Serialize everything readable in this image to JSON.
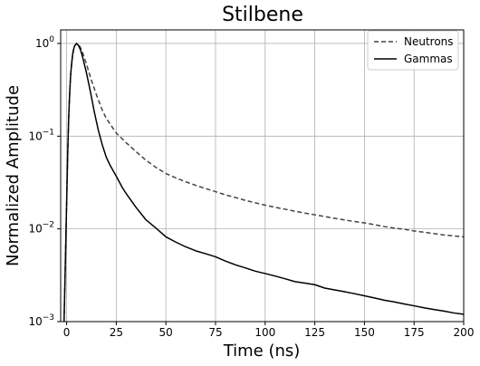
{
  "chart_data": {
    "type": "line",
    "title": "Stilbene",
    "xlabel": "Time (ns)",
    "ylabel": "Normalized Amplitude",
    "xlim": [
      -3,
      200
    ],
    "ylim": [
      0.001,
      1.4
    ],
    "yscale": "log",
    "grid": true,
    "legend_position": "top-right",
    "x_ticks": [
      0,
      25,
      50,
      75,
      100,
      125,
      150,
      175,
      200
    ],
    "y_ticks": [
      {
        "value": 0.001,
        "base": "10",
        "exp": "−3"
      },
      {
        "value": 0.01,
        "base": "10",
        "exp": "−2"
      },
      {
        "value": 0.1,
        "base": "10",
        "exp": "−1"
      },
      {
        "value": 1,
        "base": "10",
        "exp": "0"
      }
    ],
    "series": [
      {
        "name": "Neutrons",
        "color": "#444444",
        "style": "dashed",
        "points": [
          [
            -1.3,
            0.001
          ],
          [
            -0.8,
            0.003
          ],
          [
            -0.2,
            0.012
          ],
          [
            0.5,
            0.06
          ],
          [
            1,
            0.15
          ],
          [
            1.5,
            0.28
          ],
          [
            2,
            0.45
          ],
          [
            2.5,
            0.6
          ],
          [
            3,
            0.75
          ],
          [
            3.5,
            0.86
          ],
          [
            4,
            0.94
          ],
          [
            5,
            1.0
          ],
          [
            6,
            0.97
          ],
          [
            7,
            0.9
          ],
          [
            8,
            0.8
          ],
          [
            10,
            0.6
          ],
          [
            12,
            0.43
          ],
          [
            15,
            0.28
          ],
          [
            18,
            0.19
          ],
          [
            20,
            0.155
          ],
          [
            25,
            0.108
          ],
          [
            30,
            0.085
          ],
          [
            35,
            0.068
          ],
          [
            40,
            0.055
          ],
          [
            45,
            0.046
          ],
          [
            50,
            0.0395
          ],
          [
            55,
            0.0355
          ],
          [
            60,
            0.0322
          ],
          [
            65,
            0.0295
          ],
          [
            70,
            0.0272
          ],
          [
            75,
            0.0252
          ],
          [
            80,
            0.0233
          ],
          [
            85,
            0.0218
          ],
          [
            90,
            0.0203
          ],
          [
            95,
            0.0191
          ],
          [
            100,
            0.018
          ],
          [
            105,
            0.0171
          ],
          [
            110,
            0.0163
          ],
          [
            115,
            0.0155
          ],
          [
            120,
            0.0148
          ],
          [
            125,
            0.0142
          ],
          [
            130,
            0.0136
          ],
          [
            135,
            0.013
          ],
          [
            140,
            0.0125
          ],
          [
            145,
            0.012
          ],
          [
            150,
            0.0116
          ],
          [
            155,
            0.0111
          ],
          [
            160,
            0.0106
          ],
          [
            165,
            0.0102
          ],
          [
            170,
            0.0099
          ],
          [
            175,
            0.0095
          ],
          [
            180,
            0.0092
          ],
          [
            185,
            0.0089
          ],
          [
            190,
            0.0086
          ],
          [
            195,
            0.0084
          ],
          [
            200,
            0.0082
          ]
        ]
      },
      {
        "name": "Gammas",
        "color": "#000000",
        "style": "solid",
        "points": [
          [
            -1.3,
            0.001
          ],
          [
            -0.8,
            0.003
          ],
          [
            -0.2,
            0.012
          ],
          [
            0.5,
            0.06
          ],
          [
            1,
            0.15
          ],
          [
            1.5,
            0.28
          ],
          [
            2,
            0.45
          ],
          [
            2.5,
            0.6
          ],
          [
            3,
            0.75
          ],
          [
            3.5,
            0.86
          ],
          [
            4,
            0.94
          ],
          [
            5,
            1.0
          ],
          [
            6,
            0.95
          ],
          [
            7,
            0.85
          ],
          [
            8,
            0.72
          ],
          [
            10,
            0.48
          ],
          [
            12,
            0.3
          ],
          [
            14,
            0.18
          ],
          [
            16,
            0.115
          ],
          [
            18,
            0.08
          ],
          [
            20,
            0.059
          ],
          [
            22,
            0.048
          ],
          [
            25,
            0.037
          ],
          [
            28,
            0.028
          ],
          [
            30,
            0.024
          ],
          [
            35,
            0.017
          ],
          [
            40,
            0.0125
          ],
          [
            45,
            0.0102
          ],
          [
            50,
            0.0082
          ],
          [
            55,
            0.0072
          ],
          [
            60,
            0.0064
          ],
          [
            65,
            0.0058
          ],
          [
            70,
            0.0054
          ],
          [
            75,
            0.005
          ],
          [
            80,
            0.0045
          ],
          [
            85,
            0.0041
          ],
          [
            90,
            0.0038
          ],
          [
            95,
            0.0035
          ],
          [
            100,
            0.0033
          ],
          [
            105,
            0.0031
          ],
          [
            110,
            0.0029
          ],
          [
            115,
            0.0027
          ],
          [
            120,
            0.0026
          ],
          [
            125,
            0.0025
          ],
          [
            130,
            0.0023
          ],
          [
            135,
            0.0022
          ],
          [
            140,
            0.0021
          ],
          [
            145,
            0.002
          ],
          [
            150,
            0.0019
          ],
          [
            155,
            0.0018
          ],
          [
            160,
            0.0017
          ],
          [
            165,
            0.00163
          ],
          [
            170,
            0.00155
          ],
          [
            175,
            0.00148
          ],
          [
            180,
            0.00141
          ],
          [
            185,
            0.00135
          ],
          [
            190,
            0.0013
          ],
          [
            195,
            0.00124
          ],
          [
            200,
            0.0012
          ]
        ]
      }
    ]
  }
}
